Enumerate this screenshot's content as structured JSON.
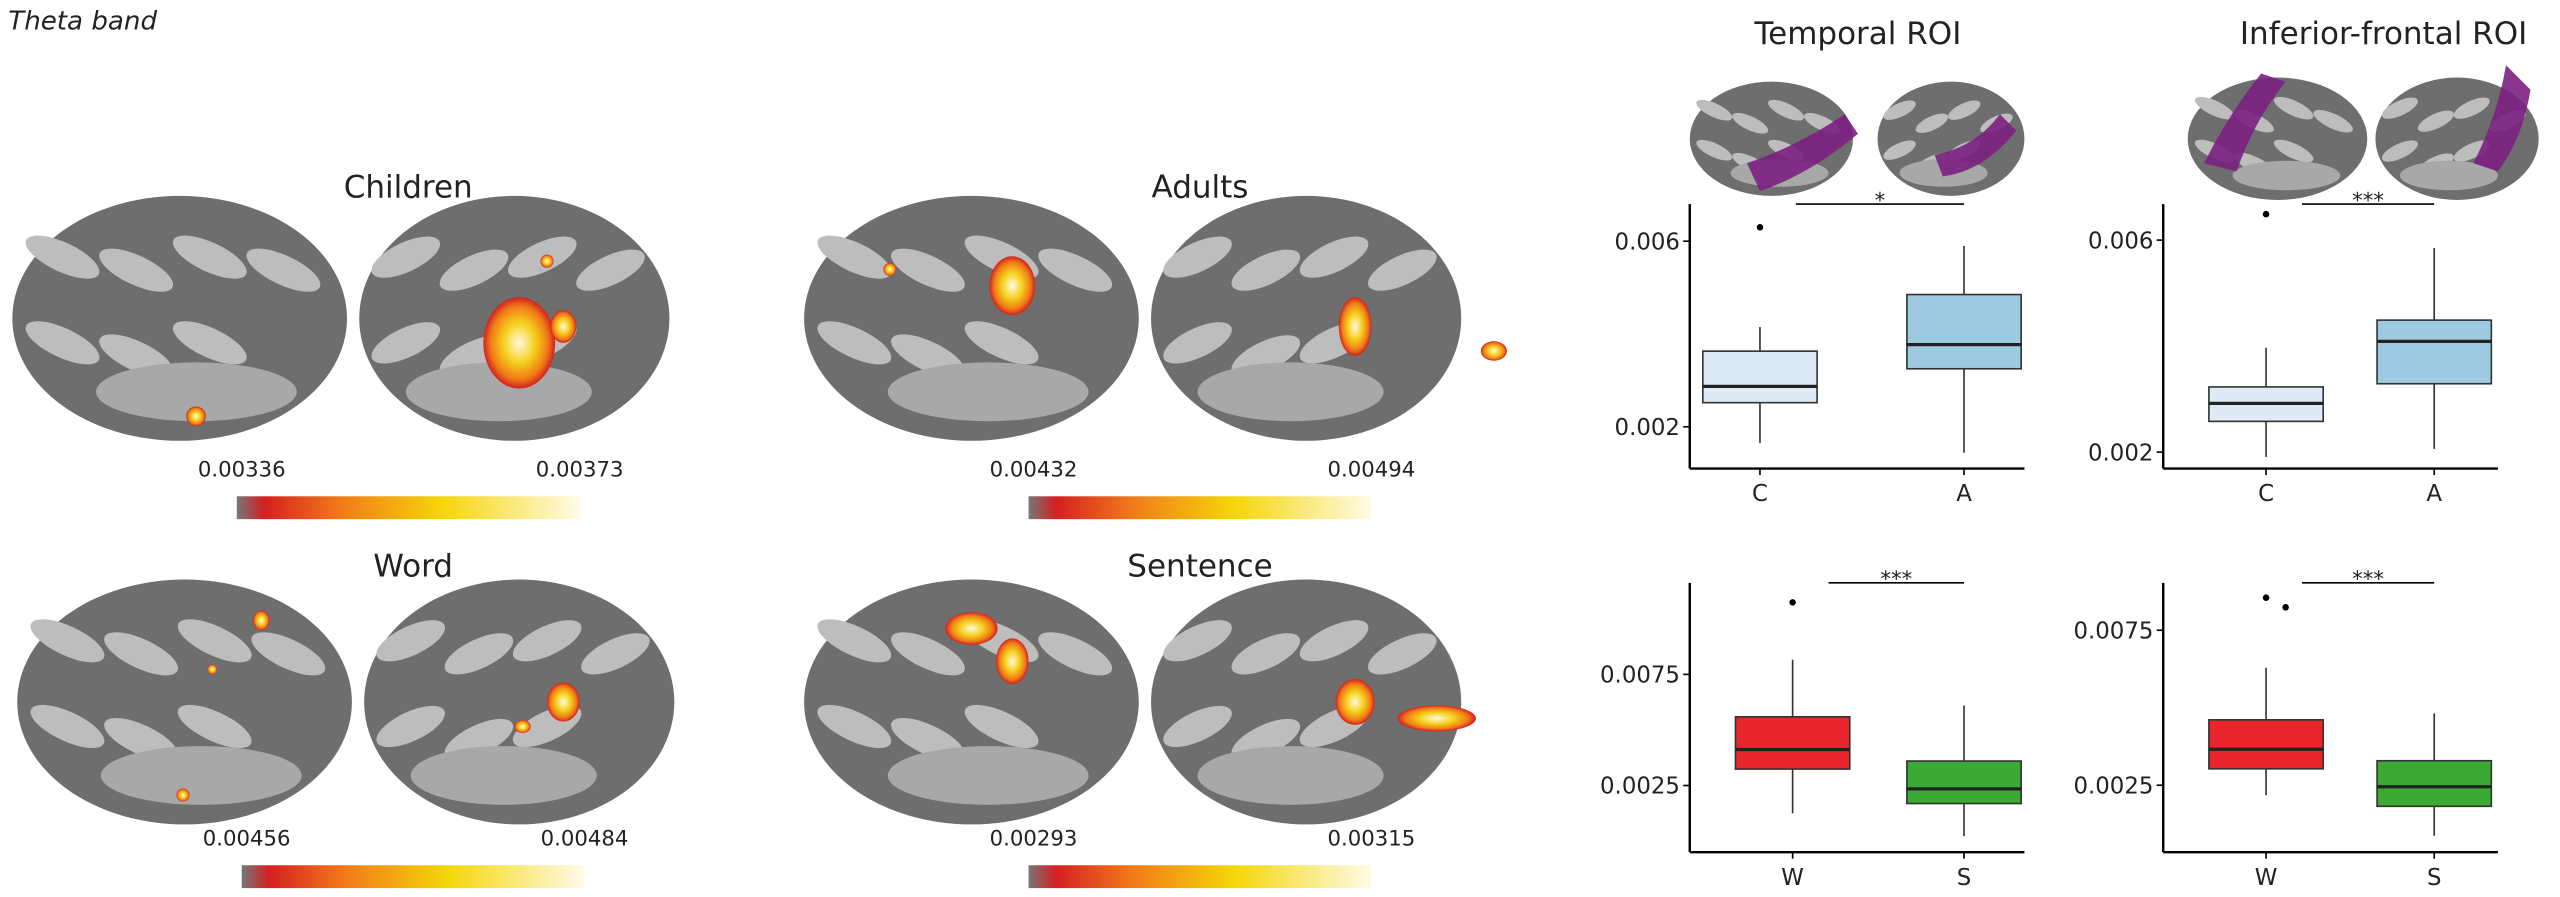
{
  "figure_label": "Theta band",
  "brain_maps": [
    {
      "label": "Children",
      "min": "0.00336",
      "max": "0.00373"
    },
    {
      "label": "Adults",
      "min": "0.00432",
      "max": "0.00494"
    },
    {
      "label": "Word",
      "min": "0.00456",
      "max": "0.00484"
    },
    {
      "label": "Sentence",
      "min": "0.00293",
      "max": "0.00315"
    }
  ],
  "chart_data": [
    {
      "type": "box",
      "title": "Temporal ROI",
      "categories": [
        "C",
        "A"
      ],
      "ylim": [
        0.0011,
        0.0068
      ],
      "yticks": [
        0.002,
        0.006
      ],
      "colors": [
        "#deebf7",
        "#9ecae1"
      ],
      "significance": "*",
      "boxes": [
        {
          "whislo": 0.00165,
          "q1": 0.00252,
          "median": 0.00287,
          "q3": 0.00363,
          "whishi": 0.00415,
          "outliers": [
            0.0063
          ]
        },
        {
          "whislo": 0.00144,
          "q1": 0.00325,
          "median": 0.00377,
          "q3": 0.00485,
          "whishi": 0.0059,
          "outliers": []
        }
      ]
    },
    {
      "type": "box",
      "title": "Inferior-frontal ROI",
      "categories": [
        "C",
        "A"
      ],
      "ylim": [
        0.00169,
        0.00668
      ],
      "yticks": [
        0.002,
        0.006
      ],
      "colors": [
        "#deebf7",
        "#9ecae1"
      ],
      "significance": "***",
      "boxes": [
        {
          "whislo": 0.00191,
          "q1": 0.00258,
          "median": 0.00292,
          "q3": 0.00323,
          "whishi": 0.00397,
          "outliers": [
            0.00649
          ]
        },
        {
          "whislo": 0.00206,
          "q1": 0.00329,
          "median": 0.00409,
          "q3": 0.00449,
          "whishi": 0.00585,
          "outliers": []
        }
      ]
    },
    {
      "type": "box",
      "categories": [
        "W",
        "S"
      ],
      "ylim": [
        -0.0005,
        0.01162
      ],
      "yticks": [
        0.0025,
        0.0075
      ],
      "colors": [
        "#e8262b",
        "#3aaa35"
      ],
      "significance": "***",
      "boxes": [
        {
          "whislo": 0.00125,
          "q1": 0.00324,
          "median": 0.00412,
          "q3": 0.00559,
          "whishi": 0.00816,
          "outliers": [
            0.01074
          ]
        },
        {
          "whislo": 0.00022,
          "q1": 0.00169,
          "median": 0.00235,
          "q3": 0.0036,
          "whishi": 0.0061,
          "outliers": []
        }
      ]
    },
    {
      "type": "box",
      "categories": [
        "W",
        "S"
      ],
      "ylim": [
        0.00034,
        0.00903
      ],
      "yticks": [
        0.0025,
        0.0075
      ],
      "colors": [
        "#e8262b",
        "#3aaa35"
      ],
      "significance": "***",
      "boxes": [
        {
          "whislo": 0.00218,
          "q1": 0.00303,
          "median": 0.00366,
          "q3": 0.00461,
          "whishi": 0.00629,
          "outliers": [
            0.00855,
            0.00824
          ]
        },
        {
          "whislo": 0.00087,
          "q1": 0.00182,
          "median": 0.00245,
          "q3": 0.00329,
          "whishi": 0.00482,
          "outliers": []
        }
      ]
    }
  ]
}
